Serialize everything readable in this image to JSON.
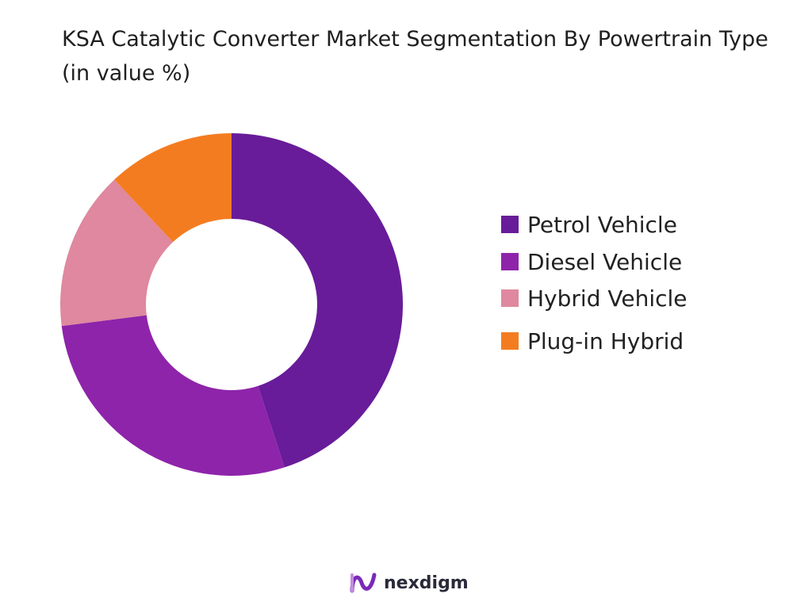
{
  "title": "KSA Catalytic Converter Market Segmentation By Powertrain Type (in value %)",
  "chart_data": {
    "type": "pie",
    "variant": "donut",
    "title": "KSA Catalytic Converter Market Segmentation By Powertrain Type (in value %)",
    "categories": [
      "Petrol Vehicle",
      "Diesel Vehicle",
      "Hybrid Vehicle",
      "Plug-in Hybrid"
    ],
    "values": [
      45,
      28,
      15,
      12
    ],
    "colors": [
      "#681c99",
      "#8e24aa",
      "#df889f",
      "#f47c20"
    ],
    "legend_position": "right"
  },
  "brand": {
    "name": "nexdigm",
    "logo_icon": "nexdigm-logo-icon"
  }
}
